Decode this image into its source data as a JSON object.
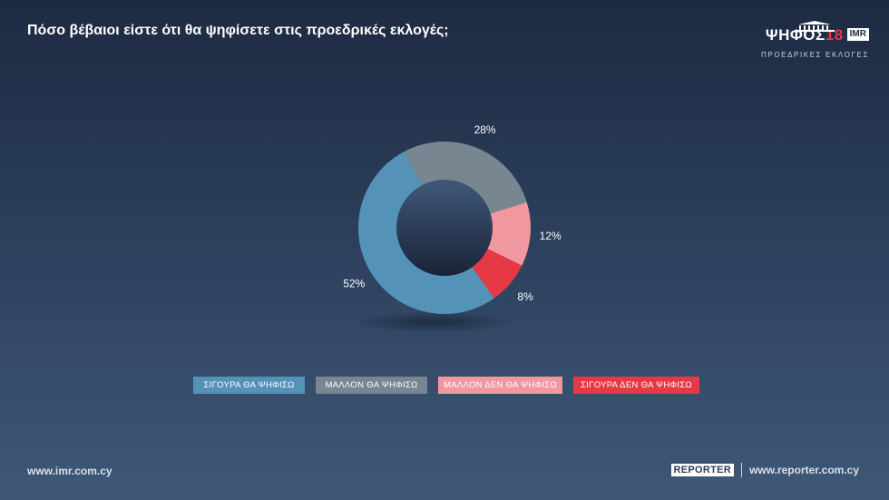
{
  "header": {
    "title": "Πόσο βέβαιοι είστε ότι θα ψηφίσετε στις προεδρικές εκλογές;"
  },
  "logo": {
    "main": "ΨΗΦΟΣ",
    "year": "18",
    "badge": "IMR",
    "subtitle": "ΠΡΟΕΔΡΙΚΕΣ ΕΚΛΟΓΕΣ"
  },
  "chart_data": {
    "type": "pie",
    "title": "Πόσο βέβαιοι είστε ότι θα ψηφίσετε στις προεδρικές εκλογές;",
    "categories": [
      "ΣΙΓΟΥΡΑ ΘΑ ΨΗΦΙΣΩ",
      "ΜΑΛΛΟΝ ΘΑ ΨΗΦΙΣΩ",
      "ΜΑΛΛΟΝ ΔΕΝ ΘΑ ΨΗΦΙΣΩ",
      "ΣΙΓΟΥΡΑ ΔΕΝ ΘΑ ΨΗΦΙΣΩ"
    ],
    "values": [
      52,
      28,
      12,
      8
    ],
    "labels": [
      "52%",
      "28%",
      "12%",
      "8%"
    ],
    "colors": [
      "#5592b7",
      "#778691",
      "#f1979f",
      "#e63946"
    ],
    "legend_position": "bottom"
  },
  "footer": {
    "left_url": "www.imr.com.cy",
    "reporter_logo": "REPORTER",
    "right_url": "www.reporter.com.cy"
  }
}
